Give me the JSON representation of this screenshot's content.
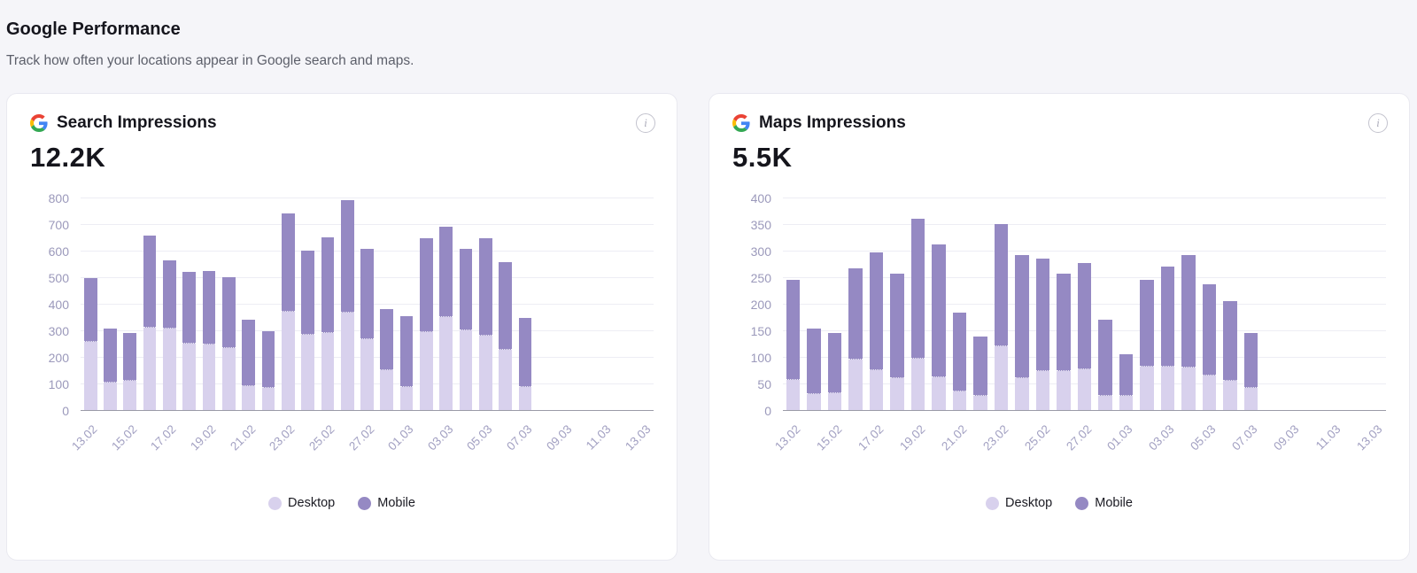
{
  "page": {
    "title": "Google Performance",
    "subtitle": "Track how often your locations appear in Google search and maps."
  },
  "icons": {
    "info_glyph": "i"
  },
  "colors": {
    "desktop": "#d8d1ed",
    "mobile": "#9589c3",
    "grid": "#ededf4",
    "axis_line": "#9b9ba7",
    "y_tick_label": "#9b99bb",
    "x_tick_label": "#a2a0c2",
    "page_background": "#f5f5f9",
    "card_background": "#ffffff",
    "card_border": "#e9e9f0"
  },
  "chart_data": [
    {
      "type": "bar",
      "stacked": true,
      "title": "Search Impressions",
      "total_label": "12.2K",
      "legend_position": "bottom",
      "grid": true,
      "ylim": [
        0,
        800
      ],
      "ytick_step": 100,
      "x_slots": 29,
      "x_axis_ticks": [
        "13.02",
        "15.02",
        "17.02",
        "19.02",
        "21.02",
        "23.02",
        "25.02",
        "27.02",
        "01.03",
        "03.03",
        "05.03",
        "07.03",
        "09.03",
        "11.03",
        "13.03"
      ],
      "x": [
        "13.02",
        "14.02",
        "15.02",
        "16.02",
        "17.02",
        "18.02",
        "19.02",
        "20.02",
        "21.02",
        "22.02",
        "23.02",
        "24.02",
        "25.02",
        "26.02",
        "27.02",
        "28.02",
        "01.03",
        "02.03",
        "03.03",
        "04.03",
        "05.03",
        "06.03",
        "07.03"
      ],
      "series": [
        {
          "name": "Desktop",
          "values": [
            260,
            108,
            112,
            313,
            310,
            252,
            250,
            238,
            95,
            88,
            372,
            286,
            293,
            370,
            271,
            153,
            89,
            297,
            355,
            302,
            282,
            230,
            89
          ]
        },
        {
          "name": "Mobile",
          "values": [
            240,
            202,
            181,
            347,
            258,
            272,
            277,
            264,
            248,
            212,
            370,
            318,
            360,
            425,
            339,
            232,
            269,
            354,
            340,
            308,
            369,
            329,
            260
          ]
        }
      ]
    },
    {
      "type": "bar",
      "stacked": true,
      "title": "Maps Impressions",
      "total_label": "5.5K",
      "legend_position": "bottom",
      "grid": true,
      "ylim": [
        0,
        400
      ],
      "ytick_step": 50,
      "x_slots": 29,
      "x_axis_ticks": [
        "13.02",
        "15.02",
        "17.02",
        "19.02",
        "21.02",
        "23.02",
        "25.02",
        "27.02",
        "01.03",
        "03.03",
        "05.03",
        "07.03",
        "09.03",
        "11.03",
        "13.03"
      ],
      "x": [
        "13.02",
        "14.02",
        "15.02",
        "16.02",
        "17.02",
        "18.02",
        "19.02",
        "20.02",
        "21.02",
        "22.02",
        "23.02",
        "24.02",
        "25.02",
        "26.02",
        "27.02",
        "28.02",
        "01.03",
        "02.03",
        "03.03",
        "04.03",
        "05.03",
        "06.03",
        "07.03"
      ],
      "series": [
        {
          "name": "Desktop",
          "values": [
            59,
            31,
            34,
            96,
            76,
            61,
            98,
            63,
            36,
            29,
            121,
            62,
            75,
            75,
            79,
            28,
            29,
            83,
            84,
            81,
            66,
            57,
            43
          ]
        },
        {
          "name": "Mobile",
          "values": [
            188,
            124,
            113,
            172,
            223,
            197,
            264,
            251,
            149,
            111,
            230,
            231,
            212,
            183,
            200,
            143,
            77,
            163,
            187,
            212,
            172,
            150,
            103
          ]
        }
      ]
    }
  ]
}
